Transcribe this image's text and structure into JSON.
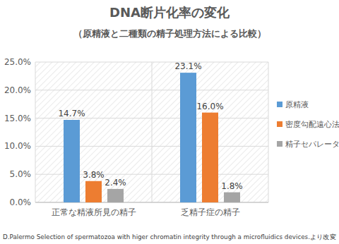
{
  "chart_data": {
    "type": "bar",
    "title": "DNA断片化率の変化",
    "subtitle": "（原精液と二種類の精子処理方法による比較）",
    "categories": [
      "正常な精液所見の精子",
      "乏精子症の精子"
    ],
    "series": [
      {
        "name": "原精液",
        "color": "#5b9bd5",
        "values": [
          14.7,
          23.1
        ],
        "value_labels": [
          "14.7%",
          "23.1%"
        ]
      },
      {
        "name": "密度勾配遠心法",
        "color": "#ed7d31",
        "values": [
          3.8,
          16.0
        ],
        "value_labels": [
          "3.8%",
          "16.0%"
        ]
      },
      {
        "name": "精子セパレーター",
        "color": "#a5a5a5",
        "values": [
          2.4,
          1.8
        ],
        "value_labels": [
          "2.4%",
          "1.8%"
        ]
      }
    ],
    "ylim": [
      0,
      25
    ],
    "yticks": [
      {
        "value": 0,
        "label": "0.0%"
      },
      {
        "value": 5,
        "label": "5.0%"
      },
      {
        "value": 10,
        "label": "10.0%"
      },
      {
        "value": 15,
        "label": "15.0%"
      },
      {
        "value": 20,
        "label": "20.0%"
      },
      {
        "value": 25,
        "label": "25.0%"
      }
    ],
    "grid": true,
    "legend": "right",
    "data_labels": true,
    "source": "D.Palermo Selection of spermatozoa with higer chromatin integrity through a microfluidics devices.より改変"
  }
}
